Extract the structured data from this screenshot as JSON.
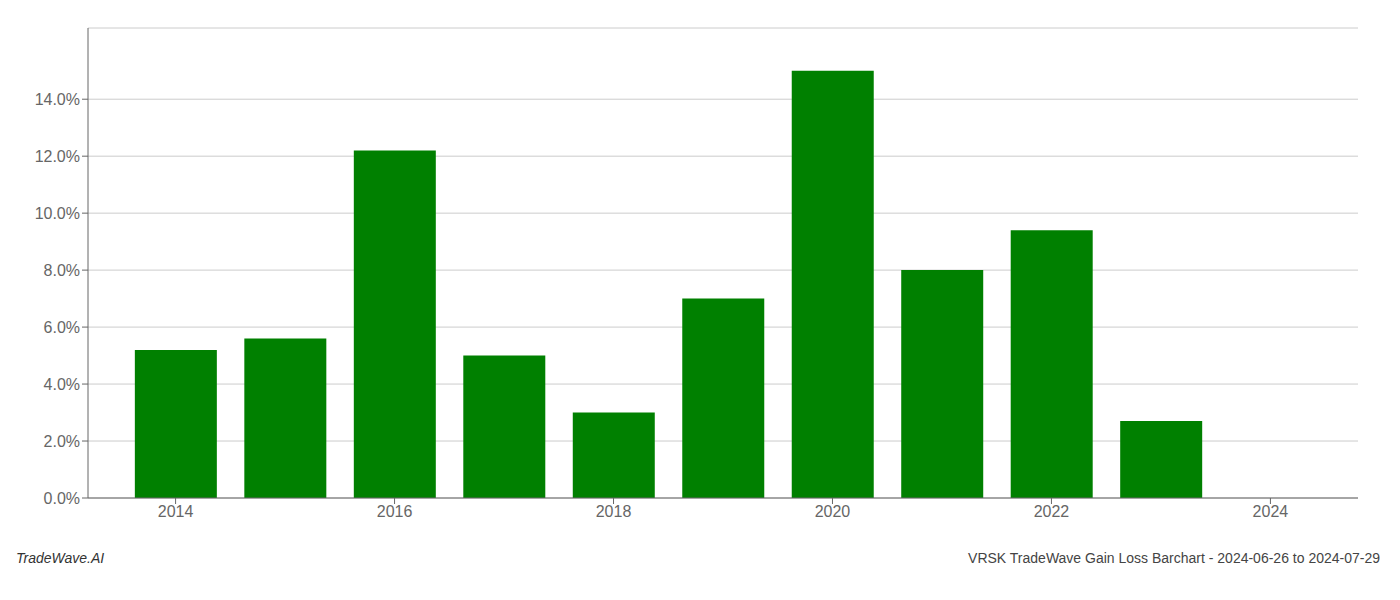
{
  "chart_data": {
    "type": "bar",
    "x": [
      2014,
      2015,
      2016,
      2017,
      2018,
      2019,
      2020,
      2021,
      2022,
      2023
    ],
    "values": [
      0.052,
      0.056,
      0.122,
      0.05,
      0.03,
      0.07,
      0.15,
      0.08,
      0.094,
      0.027
    ],
    "color": "#008000",
    "xlim": [
      2013.2,
      2024.8
    ],
    "xticks": [
      2014,
      2016,
      2018,
      2020,
      2022,
      2024
    ],
    "ylim": [
      0,
      0.165
    ],
    "yticks": [
      {
        "value": 0.0,
        "label": "0.0%"
      },
      {
        "value": 0.02,
        "label": "2.0%"
      },
      {
        "value": 0.04,
        "label": "4.0%"
      },
      {
        "value": 0.06,
        "label": "6.0%"
      },
      {
        "value": 0.08,
        "label": "8.0%"
      },
      {
        "value": 0.1,
        "label": "10.0%"
      },
      {
        "value": 0.12,
        "label": "12.0%"
      },
      {
        "value": 0.14,
        "label": "14.0%"
      }
    ],
    "grid": true,
    "annotations": [
      "TradeWave.AI",
      "VRSK TradeWave Gain Loss Barchart - 2024-06-26 to 2024-07-29"
    ]
  }
}
